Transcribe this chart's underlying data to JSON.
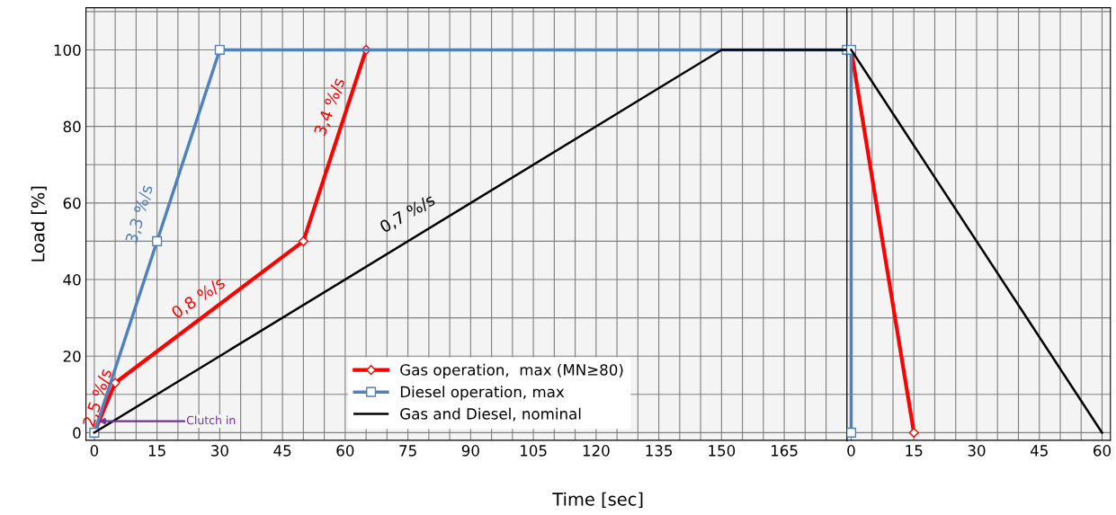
{
  "chart_data": [
    {
      "type": "line",
      "xlabel": "Time [sec]",
      "ylabel": "Load [%]",
      "xlim": [
        -2,
        180
      ],
      "ylim": [
        -2,
        111
      ],
      "xticks": [
        0,
        {
          "value": 5,
          "label": null
        },
        {
          "value": 10,
          "label": null
        },
        15,
        {
          "value": 20,
          "label": null
        },
        {
          "value": 25,
          "label": null
        },
        30,
        {
          "value": 35,
          "label": null
        },
        {
          "value": 40,
          "label": null
        },
        45,
        {
          "value": 50,
          "label": null
        },
        {
          "value": 55,
          "label": null
        },
        60,
        {
          "value": 65,
          "label": null
        },
        {
          "value": 70,
          "label": null
        },
        75,
        {
          "value": 80,
          "label": null
        },
        {
          "value": 85,
          "label": null
        },
        90,
        {
          "value": 95,
          "label": null
        },
        {
          "value": 100,
          "label": null
        },
        105,
        {
          "value": 110,
          "label": null
        },
        {
          "value": 115,
          "label": null
        },
        120,
        {
          "value": 125,
          "label": null
        },
        {
          "value": 130,
          "label": null
        },
        135,
        {
          "value": 140,
          "label": null
        },
        {
          "value": 145,
          "label": null
        },
        150,
        {
          "value": 155,
          "label": null
        },
        {
          "value": 160,
          "label": null
        },
        165,
        {
          "value": 170,
          "label": null
        },
        {
          "value": 175,
          "label": null
        }
      ],
      "yticks": [
        0,
        {
          "value": 10,
          "label": null
        },
        20,
        {
          "value": 30,
          "label": null
        },
        40,
        {
          "value": 50,
          "label": null
        },
        60,
        {
          "value": 70,
          "label": null
        },
        80,
        {
          "value": 90,
          "label": null
        },
        100,
        {
          "value": 110,
          "label": null
        }
      ],
      "grid": true,
      "legend": "bottom",
      "line_style": "solid",
      "series": [
        {
          "name": "Gas operation,  max (MN≥80)",
          "color": "#ff0000",
          "marker": "diamond",
          "x": [
            0,
            5,
            50,
            65
          ],
          "values": [
            0,
            13,
            50,
            100
          ]
        },
        {
          "name": "Diesel operation, max",
          "color": "#4f81bd",
          "marker": "square",
          "x": [
            0,
            15,
            30,
            180
          ],
          "values": [
            0,
            50,
            100,
            100
          ]
        },
        {
          "name": "Gas and Diesel, nominal",
          "color": "#000000",
          "marker": "none",
          "x": [
            0,
            150,
            180
          ],
          "values": [
            0,
            100,
            100
          ]
        }
      ],
      "annotations": [
        "2,5 %/s",
        "3,3 %/s",
        "0,8 %/s",
        "3,4 %/s",
        "0,7 %/s",
        {
          "text": "Clutch in",
          "x": 1,
          "y": 3
        }
      ]
    },
    {
      "type": "line",
      "xlim": [
        -1,
        62
      ],
      "ylim": [
        -2,
        111
      ],
      "tick_labels": "x",
      "xticks": [
        0,
        {
          "value": 5,
          "label": null
        },
        {
          "value": 10,
          "label": null
        },
        15,
        {
          "value": 20,
          "label": null
        },
        {
          "value": 25,
          "label": null
        },
        30,
        {
          "value": 35,
          "label": null
        },
        {
          "value": 40,
          "label": null
        },
        45,
        {
          "value": 50,
          "label": null
        },
        {
          "value": 55,
          "label": null
        },
        60
      ],
      "yticks": [
        0,
        {
          "value": 10,
          "label": null
        },
        20,
        {
          "value": 30,
          "label": null
        },
        40,
        {
          "value": 50,
          "label": null
        },
        60,
        {
          "value": 70,
          "label": null
        },
        80,
        {
          "value": 90,
          "label": null
        },
        100,
        {
          "value": 110,
          "label": null
        }
      ],
      "grid": true,
      "line_style": "solid",
      "series": [
        {
          "color": "#ff0000",
          "marker": "diamond",
          "x": [
            0,
            15
          ],
          "values": [
            100,
            0
          ]
        },
        {
          "color": "#4f81bd",
          "marker": "square",
          "x": [
            0,
            0
          ],
          "values": [
            100,
            0
          ]
        },
        {
          "color": "#000000",
          "marker": "none",
          "x": [
            0,
            60
          ],
          "values": [
            100,
            0
          ]
        }
      ]
    }
  ]
}
